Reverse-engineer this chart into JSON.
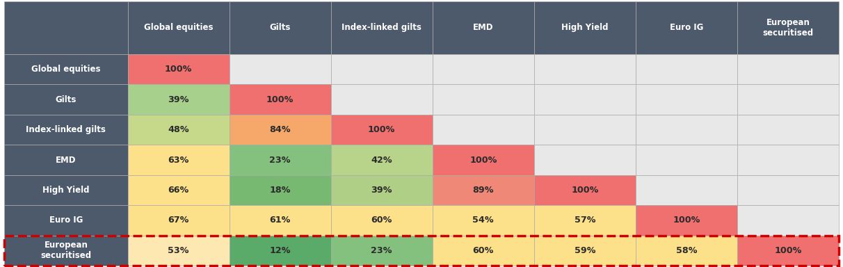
{
  "col_headers": [
    "Global equities",
    "Gilts",
    "Index-linked gilts",
    "EMD",
    "High Yield",
    "Euro IG",
    "European\nsecuritised"
  ],
  "row_headers": [
    "Global equities",
    "Gilts",
    "Index-linked gilts",
    "EMD",
    "High Yield",
    "Euro IG",
    "European\nsecuritised"
  ],
  "values": [
    [
      "100%",
      "",
      "",
      "",
      "",
      "",
      ""
    ],
    [
      "39%",
      "100%",
      "",
      "",
      "",
      "",
      ""
    ],
    [
      "48%",
      "84%",
      "100%",
      "",
      "",
      "",
      ""
    ],
    [
      "63%",
      "23%",
      "42%",
      "100%",
      "",
      "",
      ""
    ],
    [
      "66%",
      "18%",
      "39%",
      "89%",
      "100%",
      "",
      ""
    ],
    [
      "67%",
      "61%",
      "60%",
      "54%",
      "57%",
      "100%",
      ""
    ],
    [
      "53%",
      "12%",
      "23%",
      "60%",
      "59%",
      "58%",
      "100%"
    ]
  ],
  "cell_colors": [
    [
      "#f07070",
      "#e8e8e8",
      "#e8e8e8",
      "#e8e8e8",
      "#e8e8e8",
      "#e8e8e8",
      "#e8e8e8"
    ],
    [
      "#a8d08d",
      "#f07070",
      "#e8e8e8",
      "#e8e8e8",
      "#e8e8e8",
      "#e8e8e8",
      "#e8e8e8"
    ],
    [
      "#c6d98a",
      "#f5a86a",
      "#f07070",
      "#e8e8e8",
      "#e8e8e8",
      "#e8e8e8",
      "#e8e8e8"
    ],
    [
      "#fce08a",
      "#85c17e",
      "#b8d48a",
      "#f07070",
      "#e8e8e8",
      "#e8e8e8",
      "#e8e8e8"
    ],
    [
      "#fce08a",
      "#78b972",
      "#aecf85",
      "#f08878",
      "#f07070",
      "#e8e8e8",
      "#e8e8e8"
    ],
    [
      "#fce08a",
      "#fce08a",
      "#fce08a",
      "#fce08a",
      "#fce08a",
      "#f07070",
      "#e8e8e8"
    ],
    [
      "#fce8b0",
      "#5aaa6a",
      "#85c17e",
      "#fce08a",
      "#fce08a",
      "#fce08a",
      "#f07070"
    ]
  ],
  "header_bg": "#4d5a6b",
  "header_text": "#ffffff",
  "row_label_bg": "#4d5a6b",
  "row_label_text": "#ffffff",
  "last_row_border_color": "#cc0000",
  "empty_cell_bg": "#e8e8e8",
  "figure_bg": "#ffffff",
  "fig_width": 12.12,
  "fig_height": 3.84,
  "dpi": 100
}
